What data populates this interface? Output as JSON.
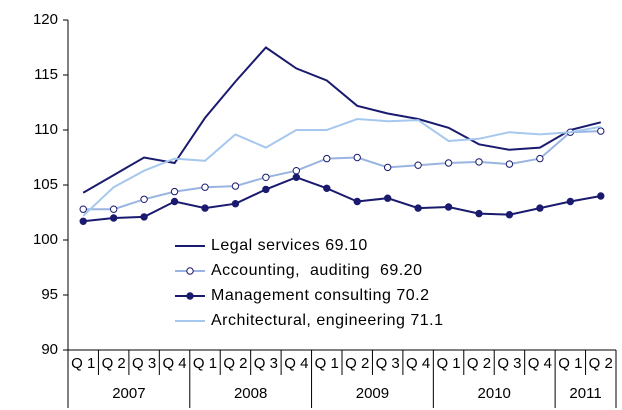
{
  "chart_data": {
    "type": "line",
    "categories": [
      "Q 1",
      "Q 2",
      "Q 3",
      "Q 4",
      "Q 1",
      "Q 2",
      "Q 3",
      "Q 4",
      "Q 1",
      "Q 2",
      "Q 3",
      "Q 4",
      "Q 1",
      "Q 2",
      "Q 3",
      "Q 4",
      "Q 1",
      "Q 2"
    ],
    "year_labels": [
      "2007",
      "2008",
      "2009",
      "2010",
      "2011"
    ],
    "series": [
      {
        "name": "Legal services 69.10",
        "color": "#1a1a6e",
        "marker": "none",
        "values": [
          104.3,
          105.9,
          107.5,
          107.0,
          111.1,
          114.4,
          117.5,
          115.6,
          114.5,
          112.2,
          111.5,
          111.0,
          110.2,
          108.7,
          108.2,
          108.4,
          110.0,
          110.7
        ]
      },
      {
        "name": "Accounting,  auditing  69.20",
        "color": "#99b4e0",
        "marker": "open",
        "values": [
          102.8,
          102.8,
          103.7,
          104.4,
          104.8,
          104.9,
          105.7,
          106.3,
          107.4,
          107.5,
          106.6,
          106.8,
          107.0,
          107.1,
          106.9,
          107.4,
          109.8,
          109.9
        ]
      },
      {
        "name": "Management consulting 70.2",
        "color": "#1a1a6e",
        "marker": "filled",
        "values": [
          101.7,
          102.0,
          102.1,
          103.5,
          102.9,
          103.3,
          104.6,
          105.7,
          104.7,
          103.5,
          103.8,
          102.9,
          103.0,
          102.4,
          102.3,
          102.9,
          103.5,
          104.0
        ]
      },
      {
        "name": "Architectural, engineering 71.1",
        "color": "#a6c8ee",
        "marker": "none",
        "values": [
          102.2,
          104.8,
          106.3,
          107.4,
          107.2,
          109.6,
          108.4,
          110.0,
          110.0,
          111.0,
          110.8,
          110.9,
          109.0,
          109.2,
          109.8,
          109.6,
          109.8,
          110.3
        ]
      }
    ],
    "ylim": [
      90,
      120
    ],
    "yticks": [
      90,
      95,
      100,
      105,
      110,
      115,
      120
    ],
    "grid": false
  }
}
